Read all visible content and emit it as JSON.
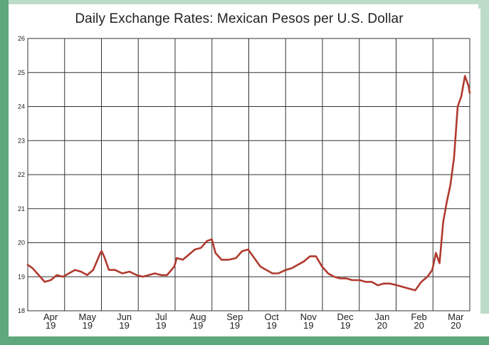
{
  "colors": {
    "frame_green": "#5fa77c",
    "frame_light": "#bcdcc8",
    "line": "#b03a2e",
    "grid": "#333333"
  },
  "chart_data": {
    "type": "line",
    "title": "Daily Exchange Rates: Mexican Pesos per U.S. Dollar",
    "xlabel": "",
    "ylabel": "",
    "ylim": [
      18,
      26
    ],
    "yticks": [
      18,
      19,
      20,
      21,
      22,
      23,
      24,
      25,
      26
    ],
    "grid": true,
    "x_ticks": [
      {
        "month": "Apr",
        "year": "19"
      },
      {
        "month": "May",
        "year": "19"
      },
      {
        "month": "Jun",
        "year": "19"
      },
      {
        "month": "Jul",
        "year": "19"
      },
      {
        "month": "Aug",
        "year": "19"
      },
      {
        "month": "Sep",
        "year": "19"
      },
      {
        "month": "Oct",
        "year": "19"
      },
      {
        "month": "Nov",
        "year": "19"
      },
      {
        "month": "Dec",
        "year": "19"
      },
      {
        "month": "Jan",
        "year": "20"
      },
      {
        "month": "Feb",
        "year": "20"
      },
      {
        "month": "Mar",
        "year": "20"
      }
    ],
    "xlim": [
      "2019-04-01",
      "2020-03-31"
    ],
    "series": [
      {
        "x": [
          "2019-04-01",
          "2019-04-05",
          "2019-04-10",
          "2019-04-15",
          "2019-04-20",
          "2019-04-25",
          "2019-04-30",
          "2019-05-05",
          "2019-05-10",
          "2019-05-15",
          "2019-05-20",
          "2019-05-25",
          "2019-05-31",
          "2019-06-01",
          "2019-06-03",
          "2019-06-07",
          "2019-06-12",
          "2019-06-18",
          "2019-06-24",
          "2019-06-30",
          "2019-07-05",
          "2019-07-10",
          "2019-07-15",
          "2019-07-20",
          "2019-07-25",
          "2019-07-31",
          "2019-08-02",
          "2019-08-07",
          "2019-08-12",
          "2019-08-17",
          "2019-08-22",
          "2019-08-27",
          "2019-08-31",
          "2019-09-03",
          "2019-09-08",
          "2019-09-14",
          "2019-09-20",
          "2019-09-25",
          "2019-09-30",
          "2019-10-05",
          "2019-10-10",
          "2019-10-15",
          "2019-10-20",
          "2019-10-25",
          "2019-10-31",
          "2019-11-05",
          "2019-11-10",
          "2019-11-15",
          "2019-11-20",
          "2019-11-25",
          "2019-11-30",
          "2019-12-05",
          "2019-12-10",
          "2019-12-15",
          "2019-12-20",
          "2019-12-25",
          "2019-12-31",
          "2020-01-05",
          "2020-01-10",
          "2020-01-15",
          "2020-01-20",
          "2020-01-25",
          "2020-01-31",
          "2020-02-05",
          "2020-02-10",
          "2020-02-15",
          "2020-02-20",
          "2020-02-25",
          "2020-02-29",
          "2020-03-03",
          "2020-03-06",
          "2020-03-09",
          "2020-03-12",
          "2020-03-15",
          "2020-03-18",
          "2020-03-21",
          "2020-03-24",
          "2020-03-27",
          "2020-03-30",
          "2020-03-31"
        ],
        "values": [
          19.35,
          19.25,
          19.05,
          18.85,
          18.9,
          19.05,
          19.0,
          19.1,
          19.2,
          19.15,
          19.05,
          19.2,
          19.7,
          19.75,
          19.6,
          19.2,
          19.2,
          19.1,
          19.15,
          19.05,
          19.0,
          19.05,
          19.1,
          19.05,
          19.05,
          19.3,
          19.55,
          19.5,
          19.65,
          19.8,
          19.85,
          20.05,
          20.1,
          19.7,
          19.5,
          19.5,
          19.55,
          19.75,
          19.8,
          19.55,
          19.3,
          19.2,
          19.1,
          19.1,
          19.2,
          19.25,
          19.35,
          19.45,
          19.6,
          19.6,
          19.3,
          19.1,
          19.0,
          18.95,
          18.95,
          18.9,
          18.9,
          18.85,
          18.85,
          18.75,
          18.8,
          18.8,
          18.75,
          18.7,
          18.65,
          18.6,
          18.85,
          19.0,
          19.2,
          19.7,
          19.4,
          20.6,
          21.2,
          21.7,
          22.5,
          24.0,
          24.3,
          24.9,
          24.6,
          24.4
        ]
      }
    ]
  }
}
